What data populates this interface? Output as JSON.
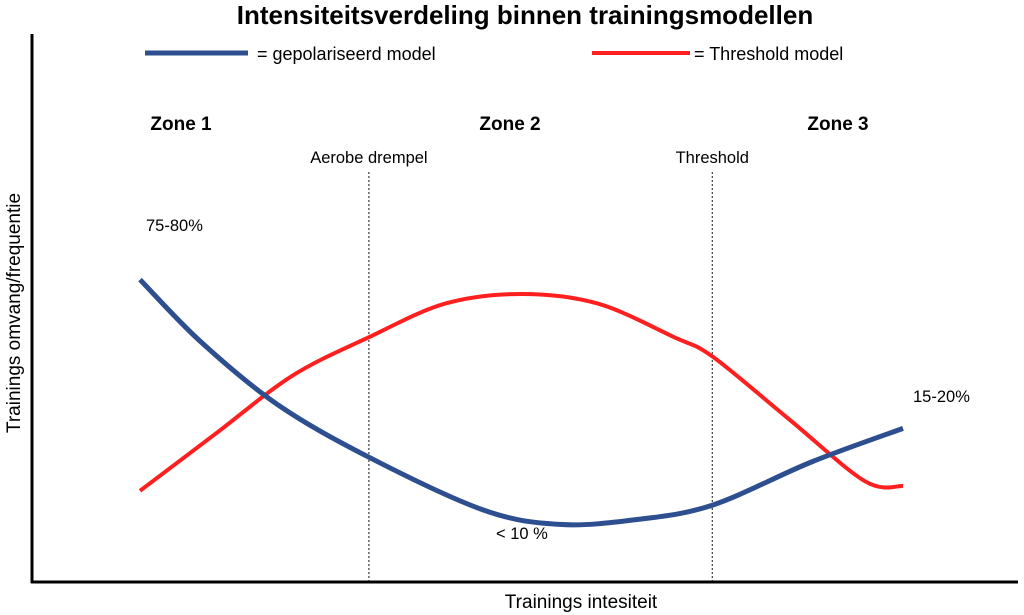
{
  "chart_data": {
    "type": "line",
    "title": "Intensiteitsverdeling binnen trainingsmodellen",
    "xlabel": "Trainings intesiteit",
    "ylabel": "Trainings omvang/frequentie",
    "xlim": [
      0,
      100
    ],
    "ylim": [
      0,
      100
    ],
    "grid": false,
    "legend_position": "top",
    "zones": [
      "Zone 1",
      "Zone 2",
      "Zone 3"
    ],
    "thresholds": [
      {
        "label": "Aerobe drempel",
        "x": 30
      },
      {
        "label": "Threshold",
        "x": 75
      }
    ],
    "series": [
      {
        "name": "= gepolariseerd model",
        "color": "#2e4f8f",
        "x": [
          0,
          8,
          18,
          30,
          45,
          55,
          65,
          75,
          88,
          100
        ],
        "y": [
          63,
          50,
          37,
          26,
          15,
          12,
          13,
          16,
          25,
          32
        ]
      },
      {
        "name": "= Threshold model",
        "color": "#ff1f1f",
        "x": [
          0,
          10,
          20,
          30,
          40,
          50,
          60,
          70,
          75,
          85,
          95,
          100
        ],
        "y": [
          19,
          31,
          43,
          51,
          58,
          60,
          58,
          51,
          47,
          34,
          21,
          20
        ]
      }
    ],
    "annotations": [
      "75-80%",
      "< 10 %",
      "15-20%"
    ]
  }
}
